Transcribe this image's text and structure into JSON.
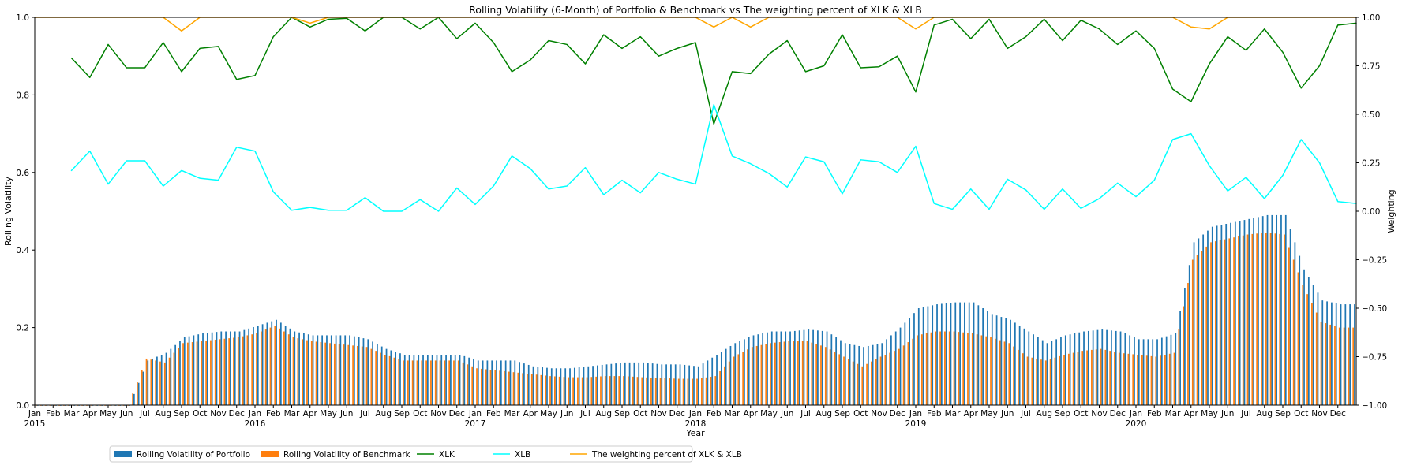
{
  "chart_data": {
    "type": "bar",
    "title": "Rolling Volatility (6-Month) of Portfolio & Benchmark vs The weighting percent of XLK & XLB",
    "xlabel": "Year",
    "ylabel": "Rolling Volatility",
    "y2label": "Weighting",
    "ylim": [
      0,
      1.0
    ],
    "y2lim": [
      -1.0,
      1.0
    ],
    "yticks": [
      "0.0",
      "0.2",
      "0.4",
      "0.6",
      "0.8",
      "1.0"
    ],
    "y2ticks": [
      "−1.00",
      "−0.75",
      "−0.50",
      "−0.25",
      "0.00",
      "0.25",
      "0.50",
      "0.75",
      "1.00"
    ],
    "grid": false,
    "legend_placement": "bottom-left, below axes",
    "x_month_labels": [
      "Jan",
      "Feb",
      "Mar",
      "Apr",
      "May",
      "Jun",
      "Jul",
      "Aug",
      "Sep",
      "Oct",
      "Nov",
      "Dec",
      "Jan",
      "Feb",
      "Mar",
      "Apr",
      "May",
      "Jun",
      "Jul",
      "Aug",
      "Sep",
      "Oct",
      "Nov",
      "Dec",
      "Jan",
      "Feb",
      "Mar",
      "Apr",
      "May",
      "Jun",
      "Jul",
      "Aug",
      "Sep",
      "Oct",
      "Nov",
      "Dec",
      "Jan",
      "Feb",
      "Mar",
      "Apr",
      "May",
      "Jun",
      "Jul",
      "Aug",
      "Sep",
      "Oct",
      "Nov",
      "Dec",
      "Jan",
      "Feb",
      "Mar",
      "Apr",
      "May",
      "Jun",
      "Jul",
      "Aug",
      "Sep",
      "Oct",
      "Nov",
      "Dec",
      "Jan",
      "Feb",
      "Mar",
      "Apr",
      "May",
      "Jun",
      "Jul",
      "Aug",
      "Sep",
      "Oct",
      "Nov",
      "Dec"
    ],
    "x_year_labels": {
      "0": "2015",
      "12": "2016",
      "24": "2017",
      "36": "2018",
      "48": "2019",
      "60": "2020"
    },
    "months": [
      "2015-01",
      "2015-02",
      "2015-03",
      "2015-04",
      "2015-05",
      "2015-06",
      "2015-07",
      "2015-08",
      "2015-09",
      "2015-10",
      "2015-11",
      "2015-12",
      "2016-01",
      "2016-02",
      "2016-03",
      "2016-04",
      "2016-05",
      "2016-06",
      "2016-07",
      "2016-08",
      "2016-09",
      "2016-10",
      "2016-11",
      "2016-12",
      "2017-01",
      "2017-02",
      "2017-03",
      "2017-04",
      "2017-05",
      "2017-06",
      "2017-07",
      "2017-08",
      "2017-09",
      "2017-10",
      "2017-11",
      "2017-12",
      "2018-01",
      "2018-02",
      "2018-03",
      "2018-04",
      "2018-05",
      "2018-06",
      "2018-07",
      "2018-08",
      "2018-09",
      "2018-10",
      "2018-11",
      "2018-12",
      "2019-01",
      "2019-02",
      "2019-03",
      "2019-04",
      "2019-05",
      "2019-06",
      "2019-07",
      "2019-08",
      "2019-09",
      "2019-10",
      "2019-11",
      "2019-12",
      "2020-01",
      "2020-02",
      "2020-03",
      "2020-04",
      "2020-05",
      "2020-06",
      "2020-07",
      "2020-08",
      "2020-09",
      "2020-10",
      "2020-11",
      "2020-12"
    ],
    "bar_series": [
      {
        "name": "Rolling Volatility of Portfolio",
        "color": "#1f77b4",
        "axis": "left",
        "values": [
          0,
          0,
          0,
          0,
          0,
          0,
          0.115,
          0.135,
          0.175,
          0.185,
          0.19,
          0.19,
          0.205,
          0.22,
          0.19,
          0.18,
          0.18,
          0.18,
          0.17,
          0.145,
          0.13,
          0.13,
          0.13,
          0.13,
          0.115,
          0.115,
          0.115,
          0.1,
          0.095,
          0.095,
          0.1,
          0.105,
          0.11,
          0.11,
          0.105,
          0.105,
          0.1,
          0.13,
          0.16,
          0.18,
          0.19,
          0.19,
          0.195,
          0.19,
          0.16,
          0.15,
          0.16,
          0.2,
          0.25,
          0.26,
          0.265,
          0.265,
          0.235,
          0.22,
          0.19,
          0.16,
          0.18,
          0.19,
          0.195,
          0.19,
          0.17,
          0.17,
          0.185,
          0.42,
          0.46,
          0.47,
          0.48,
          0.49,
          0.49,
          0.35,
          0.27,
          0.26
        ]
      },
      {
        "name": "Rolling Volatility of Benchmark",
        "color": "#ff7f0e",
        "axis": "left",
        "values": [
          0,
          0,
          0,
          0,
          0,
          0,
          0.12,
          0.11,
          0.16,
          0.165,
          0.17,
          0.175,
          0.185,
          0.205,
          0.175,
          0.165,
          0.16,
          0.155,
          0.15,
          0.13,
          0.115,
          0.115,
          0.115,
          0.115,
          0.095,
          0.09,
          0.085,
          0.08,
          0.075,
          0.072,
          0.072,
          0.075,
          0.075,
          0.072,
          0.07,
          0.068,
          0.068,
          0.075,
          0.125,
          0.15,
          0.16,
          0.165,
          0.165,
          0.15,
          0.125,
          0.1,
          0.125,
          0.145,
          0.18,
          0.19,
          0.19,
          0.185,
          0.175,
          0.16,
          0.125,
          0.115,
          0.13,
          0.14,
          0.145,
          0.135,
          0.13,
          0.125,
          0.135,
          0.375,
          0.42,
          0.43,
          0.44,
          0.445,
          0.44,
          0.31,
          0.215,
          0.2
        ]
      }
    ],
    "line_series": [
      {
        "name": "XLK",
        "color": "#008000",
        "axis": "right",
        "x": [
          2.0,
          3.0,
          4.0,
          5.0,
          6.0,
          7.0,
          8.0,
          9.0,
          10.0,
          11.0,
          12.0,
          13.0,
          14.0,
          15.0,
          16.0,
          17.0,
          18.0,
          19.0,
          20.0,
          21.0,
          22.0,
          23.0,
          24.0,
          25.0,
          26.0,
          27.0,
          28.0,
          29.0,
          30.0,
          31.0,
          32.0,
          33.0,
          34.0,
          35.0,
          36.0,
          37.0,
          38.0,
          39.0,
          40.0,
          41.0,
          42.0,
          43.0,
          44.0,
          45.0,
          46.0,
          47.0,
          48.0,
          49.0,
          50.0,
          51.0,
          52.0,
          53.0,
          54.0,
          55.0,
          56.0,
          57.0,
          58.0,
          59.0,
          60.0,
          61.0,
          62.0,
          63.0,
          64.0,
          65.0,
          66.0,
          67.0,
          68.0,
          69.0,
          70.0,
          71.0,
          71.999
        ],
        "values": [
          0.79,
          0.69,
          0.86,
          0.74,
          0.74,
          0.87,
          0.72,
          0.84,
          0.85,
          0.68,
          0.7,
          0.9,
          1.0,
          0.95,
          0.99,
          0.995,
          0.93,
          1.0,
          1.0,
          0.94,
          1.0,
          0.89,
          0.97,
          0.87,
          0.72,
          0.78,
          0.88,
          0.86,
          0.76,
          0.91,
          0.84,
          0.9,
          0.8,
          0.84,
          0.87,
          0.45,
          0.72,
          0.71,
          0.81,
          0.88,
          0.72,
          0.75,
          0.91,
          0.74,
          0.745,
          0.8,
          0.615,
          0.96,
          0.99,
          0.89,
          0.99,
          0.84,
          0.9,
          0.99,
          0.88,
          0.985,
          0.94,
          0.86,
          0.93,
          0.84,
          0.63,
          0.565,
          0.76,
          0.9,
          0.83,
          0.94,
          0.82,
          0.635,
          0.75,
          0.96,
          0.97
        ]
      },
      {
        "name": "XLB",
        "color": "#00ffff",
        "axis": "right",
        "x": [
          2.0,
          3.0,
          4.0,
          5.0,
          6.0,
          7.0,
          8.0,
          9.0,
          10.0,
          11.0,
          12.0,
          13.0,
          14.0,
          15.0,
          16.0,
          17.0,
          18.0,
          19.0,
          20.0,
          21.0,
          22.0,
          23.0,
          24.0,
          25.0,
          26.0,
          27.0,
          28.0,
          29.0,
          30.0,
          31.0,
          32.0,
          33.0,
          34.0,
          35.0,
          36.0,
          37.0,
          38.0,
          39.0,
          40.0,
          41.0,
          42.0,
          43.0,
          44.0,
          45.0,
          46.0,
          47.0,
          48.0,
          49.0,
          50.0,
          51.0,
          52.0,
          53.0,
          54.0,
          55.0,
          56.0,
          57.0,
          58.0,
          59.0,
          60.0,
          61.0,
          62.0,
          63.0,
          64.0,
          65.0,
          66.0,
          67.0,
          68.0,
          69.0,
          70.0,
          71.0,
          71.999
        ],
        "values": [
          0.21,
          0.31,
          0.14,
          0.26,
          0.26,
          0.13,
          0.21,
          0.17,
          0.16,
          0.33,
          0.31,
          0.1,
          0.005,
          0.02,
          0.005,
          0.005,
          0.07,
          0.0,
          0.0,
          0.06,
          0.0,
          0.12,
          0.035,
          0.13,
          0.285,
          0.22,
          0.115,
          0.13,
          0.225,
          0.085,
          0.16,
          0.095,
          0.2,
          0.165,
          0.14,
          0.55,
          0.285,
          0.245,
          0.195,
          0.125,
          0.28,
          0.255,
          0.09,
          0.265,
          0.255,
          0.2,
          0.335,
          0.04,
          0.01,
          0.115,
          0.01,
          0.165,
          0.11,
          0.01,
          0.115,
          0.015,
          0.065,
          0.145,
          0.075,
          0.16,
          0.37,
          0.4,
          0.235,
          0.105,
          0.175,
          0.065,
          0.185,
          0.37,
          0.25,
          0.05,
          0.04
        ]
      },
      {
        "name": "The weighting percent of XLK & XLB",
        "color": "#ffa500",
        "axis": "right",
        "x": [
          0,
          1,
          2,
          3,
          4,
          5,
          6,
          7,
          8,
          9,
          10,
          11,
          12,
          13,
          14,
          15,
          16,
          17,
          18,
          19,
          20,
          21,
          22,
          23,
          24,
          25,
          26,
          27,
          28,
          29,
          30,
          31,
          32,
          33,
          34,
          35,
          36,
          37,
          38,
          39,
          40,
          41,
          42,
          43,
          44,
          45,
          46,
          47,
          48,
          49,
          50,
          51,
          52,
          53,
          54,
          55,
          56,
          57,
          58,
          59,
          60,
          61,
          62,
          63,
          64,
          65,
          66,
          67,
          68,
          69,
          70,
          71,
          71.999
        ],
        "values": [
          1.0,
          1.0,
          1.0,
          1.0,
          1.0,
          1.0,
          1.0,
          1.0,
          0.93,
          1.0,
          1.0,
          1.0,
          1.0,
          1.0,
          1.0,
          0.97,
          1.0,
          1.0,
          1.0,
          1.0,
          1.0,
          1.0,
          1.0,
          1.0,
          1.0,
          1.0,
          1.0,
          1.0,
          1.0,
          1.0,
          1.0,
          1.0,
          1.0,
          1.0,
          1.0,
          1.0,
          1.0,
          0.95,
          1.0,
          0.95,
          1.0,
          1.0,
          1.0,
          1.0,
          1.0,
          1.0,
          1.0,
          1.0,
          0.94,
          1.0,
          1.0,
          1.0,
          1.0,
          1.0,
          1.0,
          1.0,
          1.0,
          1.0,
          1.0,
          1.0,
          1.0,
          1.0,
          1.0,
          0.95,
          0.94,
          1.0,
          1.0,
          1.0,
          1.0,
          1.0,
          1.0,
          1.0,
          1.0
        ]
      }
    ],
    "legend": [
      {
        "label": "Rolling Volatility of Portfolio",
        "kind": "patch",
        "color": "#1f77b4"
      },
      {
        "label": "Rolling Volatility of Benchmark",
        "kind": "patch",
        "color": "#ff7f0e"
      },
      {
        "label": "XLK",
        "kind": "line",
        "color": "#008000"
      },
      {
        "label": "XLB",
        "kind": "line",
        "color": "#00ffff"
      },
      {
        "label": "The weighting percent of XLK & XLB",
        "kind": "line",
        "color": "#ffa500"
      }
    ]
  }
}
